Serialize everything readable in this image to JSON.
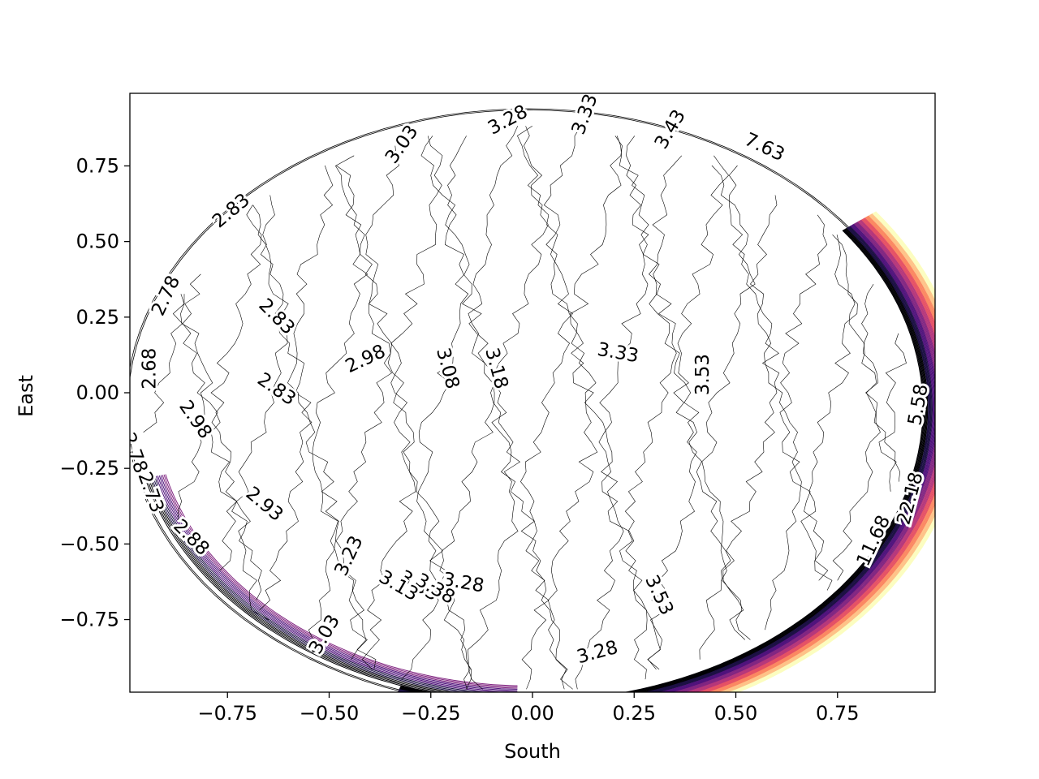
{
  "chart_data": {
    "type": "contour",
    "title": "",
    "xlabel": "South",
    "ylabel": "East",
    "xlim": [
      -0.99,
      0.99
    ],
    "ylim": [
      -0.99,
      0.99
    ],
    "x_ticks": [
      -0.75,
      -0.5,
      -0.25,
      0.0,
      0.25,
      0.5,
      0.75
    ],
    "x_tick_labels": [
      "−0.75",
      "−0.50",
      "−0.25",
      "0.00",
      "0.25",
      "0.50",
      "0.75"
    ],
    "y_ticks": [
      -0.75,
      -0.5,
      -0.25,
      0.0,
      0.25,
      0.5,
      0.75
    ],
    "y_tick_labels": [
      "−0.75",
      "−0.50",
      "−0.25",
      "0.00",
      "0.25",
      "0.50",
      "0.75"
    ],
    "grid": false,
    "colormap": [
      "#000004",
      "#1c1044",
      "#4f127b",
      "#812581",
      "#b5367a",
      "#e55064",
      "#fb8761",
      "#fec287",
      "#fcfdbf"
    ],
    "contour_labels": [
      {
        "text": "3.28",
        "x": -0.06,
        "y": 0.9,
        "angle": -28
      },
      {
        "text": "3.03",
        "x": -0.32,
        "y": 0.82,
        "angle": -55
      },
      {
        "text": "3.33",
        "x": 0.13,
        "y": 0.92,
        "angle": -70
      },
      {
        "text": "3.43",
        "x": 0.34,
        "y": 0.87,
        "angle": -60
      },
      {
        "text": "7.63",
        "x": 0.57,
        "y": 0.81,
        "angle": 25
      },
      {
        "text": "2.83",
        "x": -0.74,
        "y": 0.6,
        "angle": -40
      },
      {
        "text": "2.78",
        "x": -0.9,
        "y": 0.32,
        "angle": -65
      },
      {
        "text": "2.83",
        "x": -0.63,
        "y": 0.25,
        "angle": 45
      },
      {
        "text": "2.68",
        "x": -0.94,
        "y": 0.08,
        "angle": -90
      },
      {
        "text": "2.98",
        "x": -0.41,
        "y": 0.11,
        "angle": -25
      },
      {
        "text": "3.08",
        "x": -0.21,
        "y": 0.08,
        "angle": 75
      },
      {
        "text": "3.18",
        "x": -0.09,
        "y": 0.08,
        "angle": 75
      },
      {
        "text": "3.33",
        "x": 0.21,
        "y": 0.13,
        "angle": 10
      },
      {
        "text": "3.53",
        "x": 0.42,
        "y": 0.06,
        "angle": -90
      },
      {
        "text": "2.83",
        "x": -0.63,
        "y": 0.01,
        "angle": 35
      },
      {
        "text": "5.58",
        "x": 0.95,
        "y": -0.04,
        "angle": -80
      },
      {
        "text": "2.78",
        "x": -0.98,
        "y": -0.2,
        "angle": 70
      },
      {
        "text": "2.98",
        "x": -0.83,
        "y": -0.09,
        "angle": 55
      },
      {
        "text": "2.93",
        "x": -0.66,
        "y": -0.37,
        "angle": 40
      },
      {
        "text": "2.73",
        "x": -0.94,
        "y": -0.33,
        "angle": 70
      },
      {
        "text": "22.18",
        "x": 0.93,
        "y": -0.35,
        "angle": -75
      },
      {
        "text": "2.88",
        "x": -0.84,
        "y": -0.48,
        "angle": 45
      },
      {
        "text": "11.68",
        "x": 0.84,
        "y": -0.49,
        "angle": -65
      },
      {
        "text": "3.23",
        "x": -0.45,
        "y": -0.54,
        "angle": -65
      },
      {
        "text": "3.28",
        "x": -0.17,
        "y": -0.63,
        "angle": 10
      },
      {
        "text": "3.33",
        "x": -0.28,
        "y": -0.64,
        "angle": 30
      },
      {
        "text": "3.38",
        "x": -0.24,
        "y": -0.65,
        "angle": 30
      },
      {
        "text": "3.13",
        "x": -0.33,
        "y": -0.64,
        "angle": 30
      },
      {
        "text": "3.53",
        "x": 0.31,
        "y": -0.67,
        "angle": 65
      },
      {
        "text": "3.03",
        "x": -0.51,
        "y": -0.8,
        "angle": -60
      },
      {
        "text": "3.28",
        "x": 0.16,
        "y": -0.86,
        "angle": -15
      }
    ]
  }
}
